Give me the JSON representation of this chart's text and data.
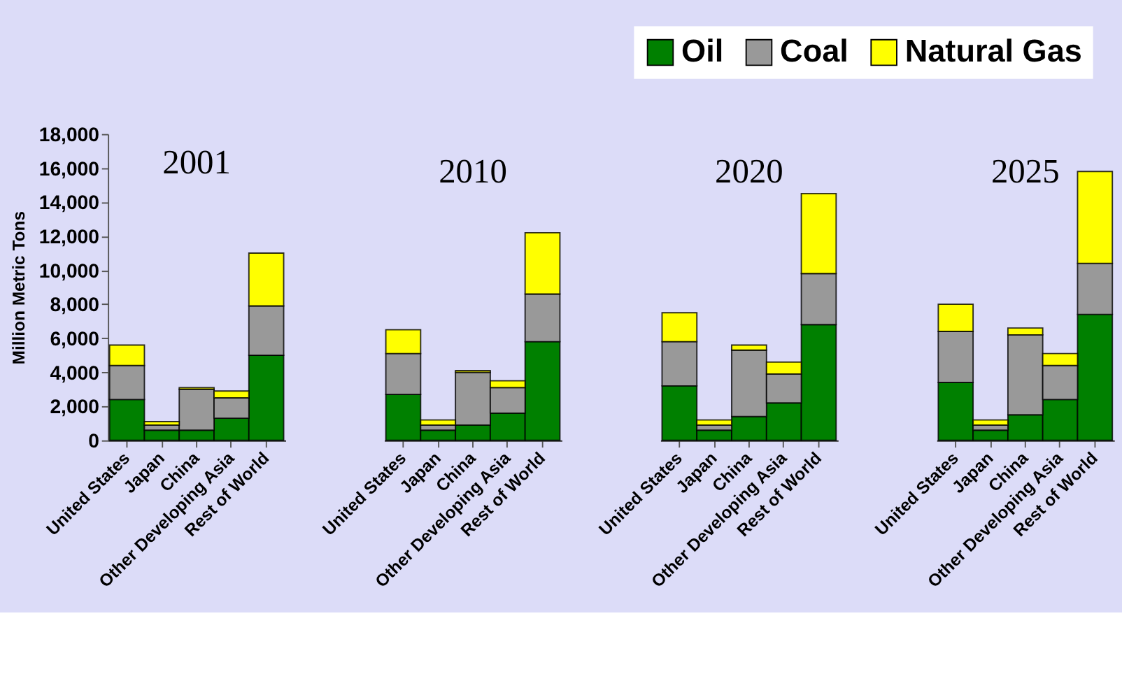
{
  "chart_data": [
    {
      "type": "bar",
      "title": "2001",
      "ylabel": "Million Metric Tons",
      "stacked": true,
      "legend": "top right",
      "grid": false,
      "categories": [
        "United States",
        "Japan",
        "China",
        "Other Developing Asia",
        "Rest of World"
      ],
      "ylim": [
        0,
        18000
      ],
      "yticks": [
        {
          "value": 0,
          "label": "0"
        },
        {
          "value": 2000,
          "label": "2,000"
        },
        {
          "value": 4000,
          "label": "4,000"
        },
        {
          "value": 6000,
          "label": "6,000"
        },
        {
          "value": 8000,
          "label": "8,000"
        },
        {
          "value": 10000,
          "label": "10,000"
        },
        {
          "value": 12000,
          "label": "12,000"
        },
        {
          "value": 14000,
          "label": "14,000"
        },
        {
          "value": 16000,
          "label": "16,000"
        },
        {
          "value": 18000,
          "label": "18,000"
        }
      ],
      "series": [
        {
          "name": "Oil",
          "color": "#008000",
          "values": [
            2400,
            600,
            600,
            1300,
            5000
          ]
        },
        {
          "name": "Coal",
          "color": "#999999",
          "values": [
            2000,
            300,
            2400,
            1200,
            2900
          ]
        },
        {
          "name": "Natural Gas",
          "color": "#ffff00",
          "values": [
            1200,
            200,
            100,
            400,
            3100
          ]
        }
      ]
    },
    {
      "type": "bar",
      "title": "2010",
      "stacked": true,
      "grid": false,
      "tick_labels": "x",
      "categories": [
        "United States",
        "Japan",
        "China",
        "Other Developing Asia",
        "Rest of World"
      ],
      "ylim": [
        0,
        18000
      ],
      "series": [
        {
          "name": "Oil",
          "color": "#008000",
          "values": [
            2700,
            600,
            900,
            1600,
            5800
          ]
        },
        {
          "name": "Coal",
          "color": "#999999",
          "values": [
            2400,
            300,
            3100,
            1500,
            2800
          ]
        },
        {
          "name": "Natural Gas",
          "color": "#ffff00",
          "values": [
            1400,
            300,
            100,
            400,
            3600
          ]
        }
      ]
    },
    {
      "type": "bar",
      "title": "2020",
      "stacked": true,
      "grid": false,
      "tick_labels": "x",
      "categories": [
        "United States",
        "Japan",
        "China",
        "Other Developing Asia",
        "Rest of World"
      ],
      "ylim": [
        0,
        18000
      ],
      "series": [
        {
          "name": "Oil",
          "color": "#008000",
          "values": [
            3200,
            600,
            1400,
            2200,
            6800
          ]
        },
        {
          "name": "Coal",
          "color": "#999999",
          "values": [
            2600,
            300,
            3900,
            1700,
            3000
          ]
        },
        {
          "name": "Natural Gas",
          "color": "#ffff00",
          "values": [
            1700,
            300,
            300,
            700,
            4700
          ]
        }
      ]
    },
    {
      "type": "bar",
      "title": "2025",
      "stacked": true,
      "grid": false,
      "tick_labels": "x",
      "categories": [
        "United States",
        "Japan",
        "China",
        "Other Developing Asia",
        "Rest of World"
      ],
      "ylim": [
        0,
        18000
      ],
      "series": [
        {
          "name": "Oil",
          "color": "#008000",
          "values": [
            3400,
            600,
            1500,
            2400,
            7400
          ]
        },
        {
          "name": "Coal",
          "color": "#999999",
          "values": [
            3000,
            300,
            4700,
            2000,
            3000
          ]
        },
        {
          "name": "Natural Gas",
          "color": "#ffff00",
          "values": [
            1600,
            300,
            400,
            700,
            5400
          ]
        }
      ]
    }
  ]
}
